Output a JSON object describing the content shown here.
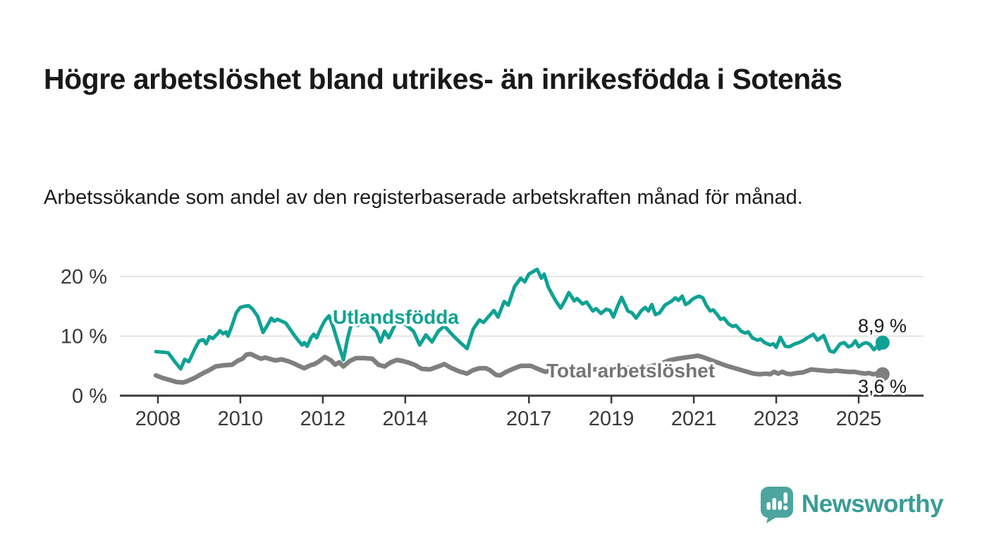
{
  "title": "Högre arbetslöshet bland utrikes- än inrikesfödda i Sotenäs",
  "subtitle": "Arbetssökande som andel av den registerbaserade arbetskraften månad för månad.",
  "branding": {
    "logo_text": "Newsworthy",
    "logo_icon": "bar-chart-speech-bubble-icon",
    "logo_icon_color": "#4ca59e",
    "logo_text_color": "#3a9c95"
  },
  "chart_data": {
    "type": "line",
    "title": "Högre arbetslöshet bland utrikes- än inrikesfödda i Sotenäs",
    "subtitle": "Arbetssökande som andel av den registerbaserade arbetskraften månad för månad.",
    "unit": "%",
    "grid": "horizontal",
    "legend_position": "inline-labels",
    "xlim": [
      2007.6,
      2026.6
    ],
    "ylim": [
      0,
      22
    ],
    "x_ticks": [
      {
        "year": 2008,
        "label": "2008"
      },
      {
        "year": 2010,
        "label": "2010"
      },
      {
        "year": 2012,
        "label": "2012"
      },
      {
        "year": 2014,
        "label": "2014"
      },
      {
        "year": 2017,
        "label": "2017"
      },
      {
        "year": 2019,
        "label": "2019"
      },
      {
        "year": 2021,
        "label": "2021"
      },
      {
        "year": 2023,
        "label": "2023"
      },
      {
        "year": 2025,
        "label": "2025"
      }
    ],
    "y_ticks": [
      {
        "value": 0,
        "label": "0 %"
      },
      {
        "value": 10,
        "label": "10 %"
      },
      {
        "value": 20,
        "label": "20 %"
      }
    ],
    "axis_color": "#3a3a3a",
    "grid_color": "#dcdcdc",
    "value_label_color": "#1a1a1a",
    "series": [
      {
        "name": "Utlandsfödda",
        "color": "#0fa294",
        "end_label": "8,9 %",
        "end_value": 8.9,
        "points": [
          [
            2007.95,
            7.4
          ],
          [
            2008.1,
            7.3
          ],
          [
            2008.25,
            7.2
          ],
          [
            2008.4,
            5.8
          ],
          [
            2008.55,
            4.5
          ],
          [
            2008.65,
            6.1
          ],
          [
            2008.75,
            5.7
          ],
          [
            2008.9,
            7.9
          ],
          [
            2009.0,
            9.2
          ],
          [
            2009.1,
            9.4
          ],
          [
            2009.17,
            8.7
          ],
          [
            2009.25,
            9.9
          ],
          [
            2009.33,
            9.6
          ],
          [
            2009.45,
            10.4
          ],
          [
            2009.5,
            10.9
          ],
          [
            2009.58,
            10.4
          ],
          [
            2009.65,
            10.7
          ],
          [
            2009.7,
            10.0
          ],
          [
            2009.8,
            11.8
          ],
          [
            2009.9,
            13.9
          ],
          [
            2010.0,
            14.8
          ],
          [
            2010.1,
            15.0
          ],
          [
            2010.2,
            15.1
          ],
          [
            2010.3,
            14.5
          ],
          [
            2010.42,
            13.3
          ],
          [
            2010.55,
            10.6
          ],
          [
            2010.68,
            12.1
          ],
          [
            2010.75,
            13.0
          ],
          [
            2010.82,
            12.5
          ],
          [
            2010.9,
            12.8
          ],
          [
            2011.0,
            12.5
          ],
          [
            2011.1,
            12.2
          ],
          [
            2011.2,
            11.2
          ],
          [
            2011.3,
            10.2
          ],
          [
            2011.4,
            9.3
          ],
          [
            2011.5,
            8.5
          ],
          [
            2011.55,
            8.9
          ],
          [
            2011.62,
            8.3
          ],
          [
            2011.72,
            9.8
          ],
          [
            2011.78,
            10.3
          ],
          [
            2011.85,
            9.7
          ],
          [
            2011.95,
            11.3
          ],
          [
            2012.05,
            12.6
          ],
          [
            2012.15,
            13.4
          ],
          [
            2012.25,
            11.6
          ],
          [
            2012.35,
            9.3
          ],
          [
            2012.5,
            6.0
          ],
          [
            2012.6,
            9.6
          ],
          [
            2012.7,
            12.2
          ],
          [
            2012.85,
            11.8
          ],
          [
            2013.0,
            12.7
          ],
          [
            2013.15,
            11.8
          ],
          [
            2013.3,
            10.8
          ],
          [
            2013.4,
            9.0
          ],
          [
            2013.5,
            10.8
          ],
          [
            2013.6,
            9.7
          ],
          [
            2013.75,
            11.9
          ],
          [
            2013.9,
            12.4
          ],
          [
            2014.05,
            11.7
          ],
          [
            2014.2,
            10.8
          ],
          [
            2014.35,
            8.5
          ],
          [
            2014.5,
            10.2
          ],
          [
            2014.65,
            9.0
          ],
          [
            2014.8,
            10.8
          ],
          [
            2014.95,
            11.7
          ],
          [
            2015.05,
            10.9
          ],
          [
            2015.2,
            9.8
          ],
          [
            2015.35,
            8.8
          ],
          [
            2015.5,
            7.9
          ],
          [
            2015.65,
            11.2
          ],
          [
            2015.8,
            12.7
          ],
          [
            2015.9,
            12.3
          ],
          [
            2016.05,
            13.5
          ],
          [
            2016.15,
            14.3
          ],
          [
            2016.25,
            13.2
          ],
          [
            2016.4,
            15.8
          ],
          [
            2016.5,
            15.2
          ],
          [
            2016.65,
            18.3
          ],
          [
            2016.8,
            19.7
          ],
          [
            2016.9,
            19.1
          ],
          [
            2017.0,
            20.4
          ],
          [
            2017.2,
            21.2
          ],
          [
            2017.3,
            19.7
          ],
          [
            2017.37,
            20.4
          ],
          [
            2017.47,
            18.2
          ],
          [
            2017.57,
            16.9
          ],
          [
            2017.67,
            15.7
          ],
          [
            2017.77,
            14.7
          ],
          [
            2017.87,
            15.9
          ],
          [
            2017.97,
            17.3
          ],
          [
            2018.1,
            15.9
          ],
          [
            2018.17,
            16.3
          ],
          [
            2018.3,
            15.4
          ],
          [
            2018.4,
            15.7
          ],
          [
            2018.55,
            14.2
          ],
          [
            2018.63,
            14.6
          ],
          [
            2018.75,
            13.8
          ],
          [
            2018.87,
            14.5
          ],
          [
            2018.97,
            14.3
          ],
          [
            2019.05,
            13.2
          ],
          [
            2019.15,
            15.0
          ],
          [
            2019.25,
            16.5
          ],
          [
            2019.4,
            14.2
          ],
          [
            2019.5,
            13.9
          ],
          [
            2019.6,
            13.0
          ],
          [
            2019.72,
            14.2
          ],
          [
            2019.82,
            14.8
          ],
          [
            2019.9,
            14.2
          ],
          [
            2019.98,
            15.3
          ],
          [
            2020.07,
            13.6
          ],
          [
            2020.17,
            13.9
          ],
          [
            2020.3,
            15.2
          ],
          [
            2020.45,
            15.8
          ],
          [
            2020.55,
            16.4
          ],
          [
            2020.63,
            16.0
          ],
          [
            2020.72,
            16.7
          ],
          [
            2020.8,
            15.3
          ],
          [
            2020.88,
            15.6
          ],
          [
            2020.97,
            16.2
          ],
          [
            2021.05,
            16.5
          ],
          [
            2021.13,
            16.7
          ],
          [
            2021.22,
            16.4
          ],
          [
            2021.3,
            15.2
          ],
          [
            2021.4,
            14.2
          ],
          [
            2021.47,
            14.4
          ],
          [
            2021.57,
            13.6
          ],
          [
            2021.65,
            12.8
          ],
          [
            2021.73,
            13.0
          ],
          [
            2021.85,
            12.0
          ],
          [
            2021.95,
            11.6
          ],
          [
            2022.02,
            11.8
          ],
          [
            2022.15,
            10.8
          ],
          [
            2022.25,
            10.5
          ],
          [
            2022.32,
            10.7
          ],
          [
            2022.42,
            9.7
          ],
          [
            2022.55,
            9.3
          ],
          [
            2022.62,
            9.5
          ],
          [
            2022.72,
            8.9
          ],
          [
            2022.85,
            8.5
          ],
          [
            2022.93,
            8.7
          ],
          [
            2023.0,
            8.1
          ],
          [
            2023.1,
            9.8
          ],
          [
            2023.22,
            8.3
          ],
          [
            2023.32,
            8.2
          ],
          [
            2023.45,
            8.7
          ],
          [
            2023.55,
            8.9
          ],
          [
            2023.67,
            9.3
          ],
          [
            2023.75,
            9.7
          ],
          [
            2023.9,
            10.3
          ],
          [
            2024.0,
            9.3
          ],
          [
            2024.15,
            10.1
          ],
          [
            2024.3,
            7.5
          ],
          [
            2024.4,
            7.3
          ],
          [
            2024.55,
            8.7
          ],
          [
            2024.65,
            8.9
          ],
          [
            2024.75,
            8.2
          ],
          [
            2024.83,
            8.4
          ],
          [
            2024.92,
            9.2
          ],
          [
            2025.0,
            8.2
          ],
          [
            2025.1,
            8.7
          ],
          [
            2025.18,
            8.9
          ],
          [
            2025.27,
            8.6
          ],
          [
            2025.37,
            7.7
          ],
          [
            2025.45,
            8.3
          ],
          [
            2025.5,
            7.8
          ],
          [
            2025.58,
            8.9
          ]
        ]
      },
      {
        "name": "Total arbetslöshet",
        "color": "#7f7f7f",
        "end_label": "3,6 %",
        "end_value": 3.6,
        "points": [
          [
            2007.95,
            3.4
          ],
          [
            2008.1,
            3.0
          ],
          [
            2008.3,
            2.6
          ],
          [
            2008.45,
            2.3
          ],
          [
            2008.6,
            2.2
          ],
          [
            2008.7,
            2.4
          ],
          [
            2008.9,
            3.0
          ],
          [
            2009.1,
            3.8
          ],
          [
            2009.25,
            4.3
          ],
          [
            2009.4,
            4.9
          ],
          [
            2009.6,
            5.1
          ],
          [
            2009.8,
            5.2
          ],
          [
            2009.95,
            5.9
          ],
          [
            2010.05,
            6.2
          ],
          [
            2010.15,
            6.9
          ],
          [
            2010.25,
            7.0
          ],
          [
            2010.4,
            6.5
          ],
          [
            2010.5,
            6.2
          ],
          [
            2010.6,
            6.4
          ],
          [
            2010.7,
            6.2
          ],
          [
            2010.85,
            5.9
          ],
          [
            2011.0,
            6.1
          ],
          [
            2011.15,
            5.8
          ],
          [
            2011.3,
            5.4
          ],
          [
            2011.45,
            4.9
          ],
          [
            2011.55,
            4.6
          ],
          [
            2011.7,
            5.1
          ],
          [
            2011.8,
            5.3
          ],
          [
            2011.9,
            5.7
          ],
          [
            2012.05,
            6.5
          ],
          [
            2012.2,
            5.9
          ],
          [
            2012.3,
            5.2
          ],
          [
            2012.4,
            5.6
          ],
          [
            2012.5,
            4.9
          ],
          [
            2012.65,
            5.8
          ],
          [
            2012.8,
            6.3
          ],
          [
            2013.0,
            6.3
          ],
          [
            2013.2,
            6.2
          ],
          [
            2013.35,
            5.2
          ],
          [
            2013.5,
            4.9
          ],
          [
            2013.65,
            5.6
          ],
          [
            2013.8,
            6.0
          ],
          [
            2013.95,
            5.8
          ],
          [
            2014.1,
            5.5
          ],
          [
            2014.25,
            5.1
          ],
          [
            2014.4,
            4.5
          ],
          [
            2014.6,
            4.4
          ],
          [
            2014.8,
            4.9
          ],
          [
            2014.95,
            5.3
          ],
          [
            2015.1,
            4.7
          ],
          [
            2015.3,
            4.1
          ],
          [
            2015.5,
            3.7
          ],
          [
            2015.65,
            4.3
          ],
          [
            2015.8,
            4.6
          ],
          [
            2015.95,
            4.6
          ],
          [
            2016.05,
            4.3
          ],
          [
            2016.2,
            3.5
          ],
          [
            2016.3,
            3.4
          ],
          [
            2016.45,
            4.0
          ],
          [
            2016.65,
            4.6
          ],
          [
            2016.8,
            5.0
          ],
          [
            2017.05,
            5.0
          ],
          [
            2017.25,
            4.4
          ],
          [
            2017.4,
            4.0
          ],
          [
            2017.6,
            4.4
          ],
          [
            2017.8,
            4.7
          ],
          [
            2018.0,
            4.6
          ],
          [
            2018.2,
            4.4
          ],
          [
            2018.4,
            4.3
          ],
          [
            2018.6,
            4.4
          ],
          [
            2018.8,
            4.6
          ],
          [
            2019.0,
            4.8
          ],
          [
            2019.2,
            4.9
          ],
          [
            2019.4,
            4.7
          ],
          [
            2019.6,
            4.5
          ],
          [
            2019.8,
            4.7
          ],
          [
            2020.0,
            5.0
          ],
          [
            2020.2,
            5.4
          ],
          [
            2020.4,
            5.9
          ],
          [
            2020.6,
            6.2
          ],
          [
            2020.8,
            6.4
          ],
          [
            2021.0,
            6.6
          ],
          [
            2021.1,
            6.7
          ],
          [
            2021.25,
            6.4
          ],
          [
            2021.4,
            6.0
          ],
          [
            2021.6,
            5.5
          ],
          [
            2021.8,
            5.0
          ],
          [
            2022.0,
            4.6
          ],
          [
            2022.15,
            4.3
          ],
          [
            2022.3,
            4.0
          ],
          [
            2022.45,
            3.7
          ],
          [
            2022.6,
            3.6
          ],
          [
            2022.75,
            3.7
          ],
          [
            2022.85,
            3.6
          ],
          [
            2022.95,
            4.0
          ],
          [
            2023.05,
            3.7
          ],
          [
            2023.15,
            4.0
          ],
          [
            2023.25,
            3.7
          ],
          [
            2023.35,
            3.6
          ],
          [
            2023.5,
            3.8
          ],
          [
            2023.65,
            3.9
          ],
          [
            2023.85,
            4.4
          ],
          [
            2024.0,
            4.3
          ],
          [
            2024.15,
            4.2
          ],
          [
            2024.3,
            4.1
          ],
          [
            2024.45,
            4.2
          ],
          [
            2024.6,
            4.1
          ],
          [
            2024.75,
            4.0
          ],
          [
            2024.9,
            4.0
          ],
          [
            2025.05,
            3.8
          ],
          [
            2025.15,
            3.7
          ],
          [
            2025.25,
            3.8
          ],
          [
            2025.35,
            3.6
          ],
          [
            2025.45,
            3.7
          ],
          [
            2025.58,
            3.6
          ]
        ]
      }
    ]
  }
}
